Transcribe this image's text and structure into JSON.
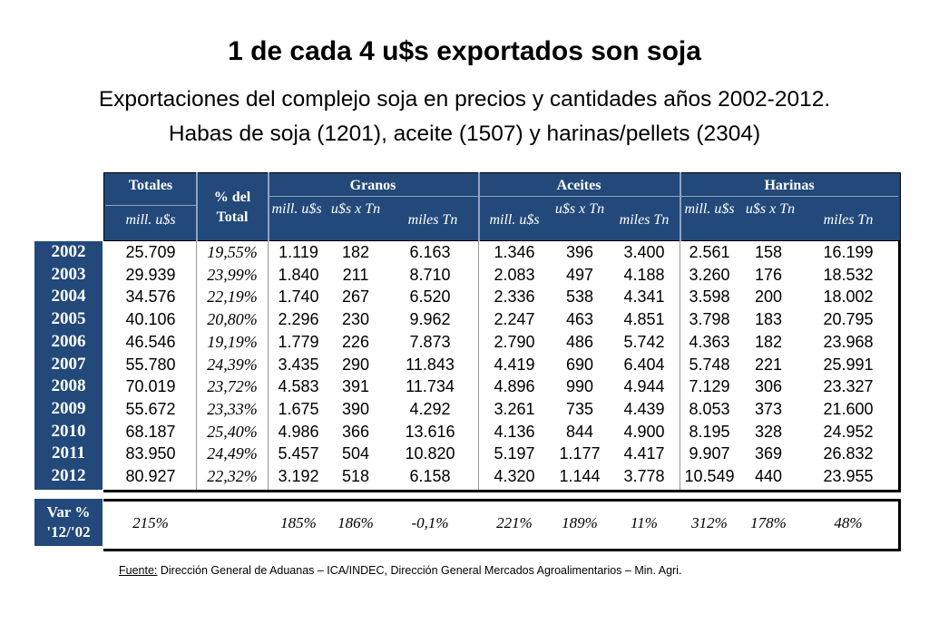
{
  "title": "1 de cada 4 u$s exportados son soja",
  "subtitle1": "Exportaciones del complejo soja en precios y cantidades años 2002-2012.",
  "subtitle2": "Habas de soja (1201), aceite (1507) y harinas/pellets (2304)",
  "header": {
    "totales": "Totales",
    "totales_unit": "mill. u$s",
    "pct_total": "% del Total",
    "granos": "Granos",
    "aceites": "Aceites",
    "harinas": "Harinas",
    "mill_us": "mill. u$s",
    "us_tn": "u$s x Tn",
    "miles_tn": "miles Tn"
  },
  "years": [
    "2002",
    "2003",
    "2004",
    "2005",
    "2006",
    "2007",
    "2008",
    "2009",
    "2010",
    "2011",
    "2012"
  ],
  "rows": [
    [
      "25.709",
      "19,55%",
      "1.119",
      "182",
      "6.163",
      "1.346",
      "396",
      "3.400",
      "2.561",
      "158",
      "16.199"
    ],
    [
      "29.939",
      "23,99%",
      "1.840",
      "211",
      "8.710",
      "2.083",
      "497",
      "4.188",
      "3.260",
      "176",
      "18.532"
    ],
    [
      "34.576",
      "22,19%",
      "1.740",
      "267",
      "6.520",
      "2.336",
      "538",
      "4.341",
      "3.598",
      "200",
      "18.002"
    ],
    [
      "40.106",
      "20,80%",
      "2.296",
      "230",
      "9.962",
      "2.247",
      "463",
      "4.851",
      "3.798",
      "183",
      "20.795"
    ],
    [
      "46.546",
      "19,19%",
      "1.779",
      "226",
      "7.873",
      "2.790",
      "486",
      "5.742",
      "4.363",
      "182",
      "23.968"
    ],
    [
      "55.780",
      "24,39%",
      "3.435",
      "290",
      "11.843",
      "4.419",
      "690",
      "6.404",
      "5.748",
      "221",
      "25.991"
    ],
    [
      "70.019",
      "23,72%",
      "4.583",
      "391",
      "11.734",
      "4.896",
      "990",
      "4.944",
      "7.129",
      "306",
      "23.327"
    ],
    [
      "55.672",
      "23,33%",
      "1.675",
      "390",
      "4.292",
      "3.261",
      "735",
      "4.439",
      "8.053",
      "373",
      "21.600"
    ],
    [
      "68.187",
      "25,40%",
      "4.986",
      "366",
      "13.616",
      "4.136",
      "844",
      "4.900",
      "8.195",
      "328",
      "24.952"
    ],
    [
      "83.950",
      "24,49%",
      "5.457",
      "504",
      "10.820",
      "5.197",
      "1.177",
      "4.417",
      "9.907",
      "369",
      "26.832"
    ],
    [
      "80.927",
      "22,32%",
      "3.192",
      "518",
      "6.158",
      "4.320",
      "1.144",
      "3.778",
      "10.549",
      "440",
      "23.955"
    ]
  ],
  "var": {
    "label_line1": "Var %",
    "label_line2": "'12/'02",
    "values": [
      "215%",
      "",
      "185%",
      "186%",
      "-0,1%",
      "221%",
      "189%",
      "11%",
      "312%",
      "178%",
      "48%"
    ]
  },
  "source": {
    "label": "Fuente:",
    "text": " Dirección General de Aduanas – ICA/INDEC, Dirección General Mercados Agroalimentarios – Min. Agri."
  }
}
